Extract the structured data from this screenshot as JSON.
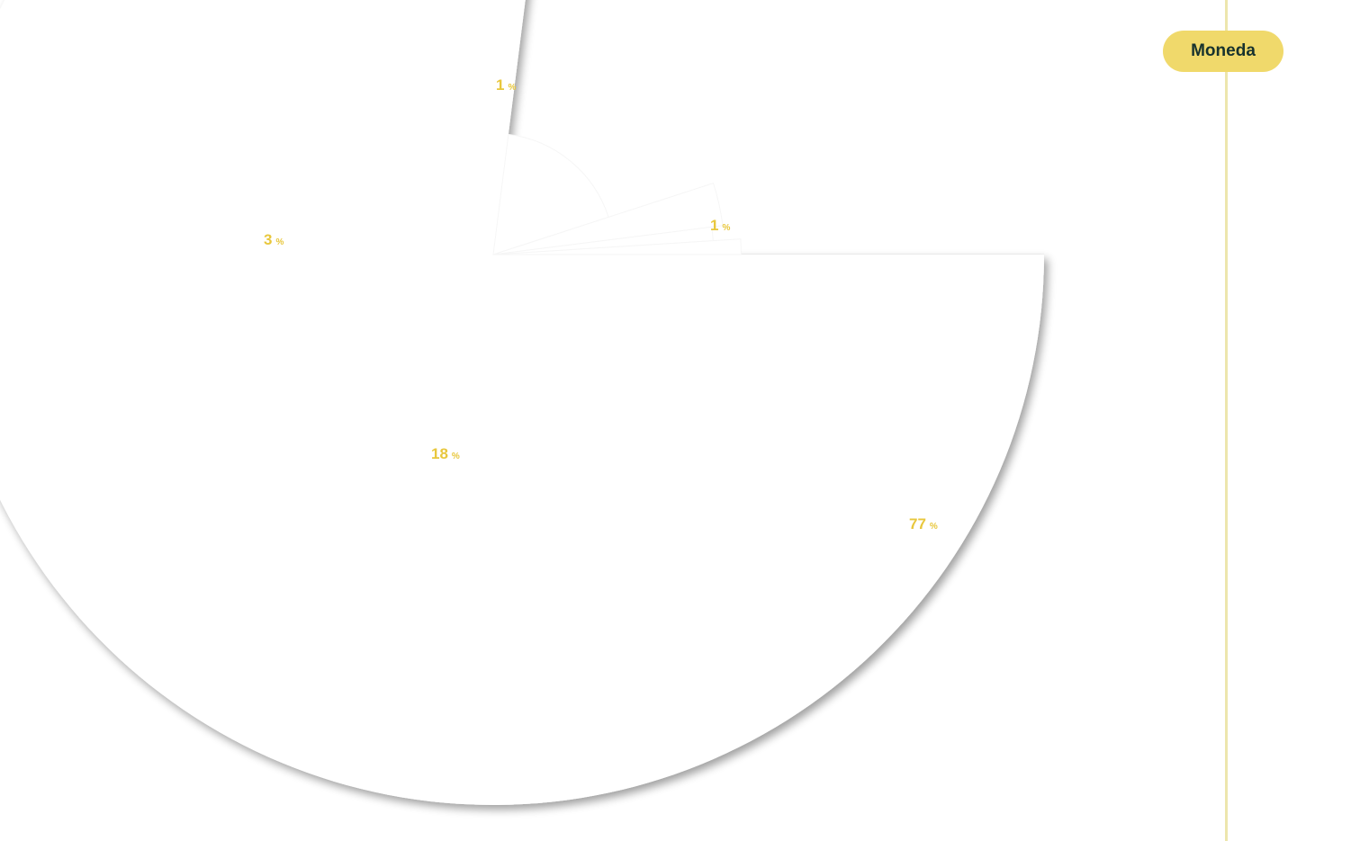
{
  "currency_button": {
    "label": "Moneda"
  },
  "colors": {
    "accent": "#e8c73d",
    "pill_bg": "#f0d96b",
    "pill_text": "#17322e",
    "rail": "#ede6ad",
    "slice_fill": "#ffffff",
    "slice_shadow": "#b9b9b9",
    "leader_line": "#ececec"
  },
  "chart_data": {
    "type": "pie",
    "variant": "exploded-wedges",
    "series": [
      {
        "value": 77,
        "unit": "%"
      },
      {
        "value": 18,
        "unit": "%"
      },
      {
        "value": 3,
        "unit": "%"
      },
      {
        "value": 1,
        "unit": "%"
      },
      {
        "value": 1,
        "unit": "%"
      }
    ],
    "legend": "none",
    "grid": false
  }
}
